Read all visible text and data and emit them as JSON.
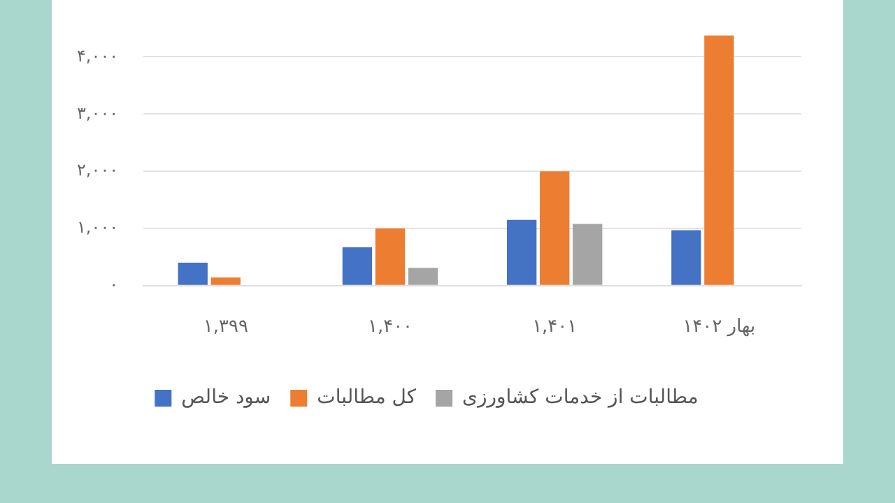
{
  "chart_data": {
    "type": "bar",
    "categories": [
      "۱,۳۹۹",
      "۱,۴۰۰",
      "۱,۴۰۱",
      "بهار ۱۴۰۲"
    ],
    "series": [
      {
        "name": "سود خالص",
        "color": "#4472c4",
        "values": [
          400,
          670,
          1150,
          970
        ]
      },
      {
        "name": "کل مطالبات",
        "color": "#ed7d31",
        "values": [
          140,
          1000,
          2000,
          4380
        ]
      },
      {
        "name": "مطالبات از خدمات کشاورزی",
        "color": "#a5a5a5",
        "values": [
          0,
          310,
          1080,
          null
        ]
      }
    ],
    "ylim": [
      0,
      4380
    ],
    "yticks": [
      {
        "value": 0,
        "label": "۰"
      },
      {
        "value": 1000,
        "label": "۱,۰۰۰"
      },
      {
        "value": 2000,
        "label": "۲,۰۰۰"
      },
      {
        "value": 3000,
        "label": "۳,۰۰۰"
      },
      {
        "value": 4000,
        "label": "۴,۰۰۰"
      }
    ],
    "grid": "y",
    "legend": "bottom"
  }
}
